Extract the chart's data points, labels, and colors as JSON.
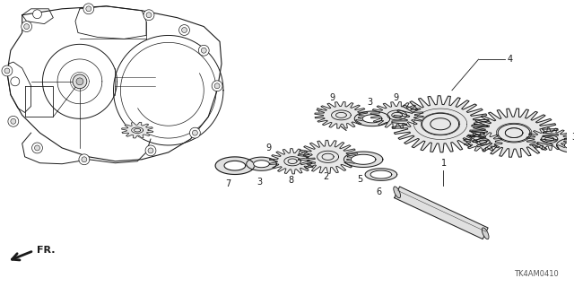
{
  "bg_color": "#ffffff",
  "line_color": "#1a1a1a",
  "fig_width": 6.4,
  "fig_height": 3.2,
  "dpi": 100,
  "diagram_code": "TK4AM0410",
  "fr_label": "FR.",
  "gray1": "#cccccc",
  "gray2": "#aaaaaa",
  "gray3": "#888888"
}
